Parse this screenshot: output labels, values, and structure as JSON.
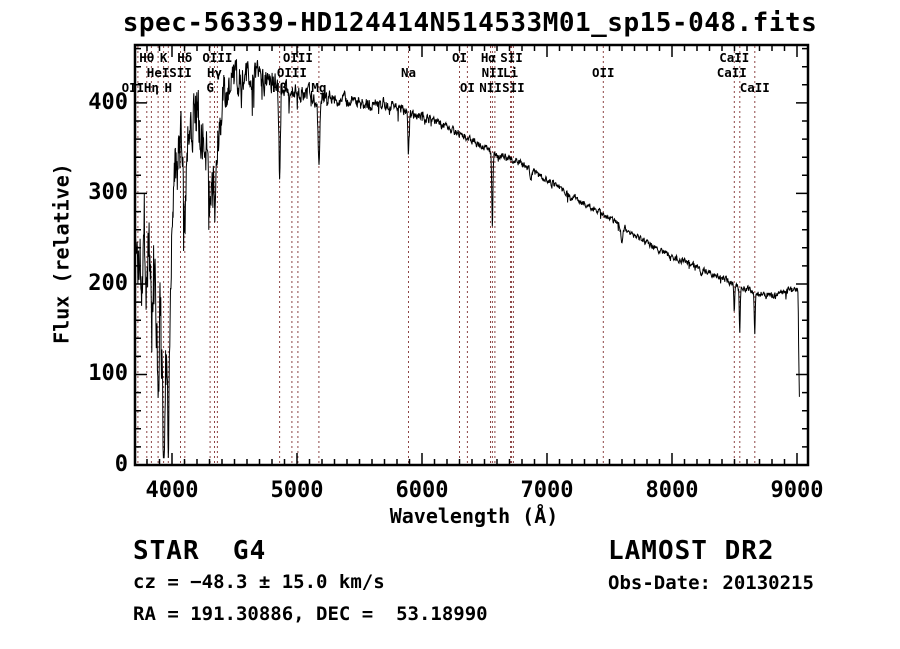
{
  "title": "spec-56339-HD124414N514533M01_sp15-048.fits",
  "annotations": {
    "class_label": "STAR  G4",
    "survey": "LAMOST DR2",
    "cz": "cz = −48.3 ± 15.0 km/s",
    "obs_date": "Obs-Date: 20130215",
    "radec": "RA = 191.30886, DEC =  53.18990"
  },
  "chart_data": {
    "type": "line",
    "title": "spec-56339-HD124414N514533M01_sp15-048.fits",
    "xlabel": "Wavelength (Å)",
    "ylabel": "Flux (relative)",
    "xlim": [
      3704,
      9088
    ],
    "ylim": [
      0,
      464
    ],
    "x_major_ticks": [
      4000,
      5000,
      6000,
      7000,
      8000,
      9000
    ],
    "x_minor_step": 100,
    "y_major_ticks": [
      0,
      100,
      200,
      300,
      400
    ],
    "y_minor_step": 20,
    "grid": false,
    "legend": "none",
    "spectrum_color": "#000000",
    "line_mark_color": "#8d4545",
    "spectral_lines": [
      {
        "label": "OII",
        "wavelength": 3727,
        "row": 3,
        "dx": -5
      },
      {
        "label": "Hθ",
        "wavelength": 3798,
        "row": 1
      },
      {
        "label": "Hη",
        "wavelength": 3835,
        "row": 3
      },
      {
        "label": "HeI",
        "wavelength": 3889,
        "row": 2
      },
      {
        "label": "K",
        "wavelength": 3933,
        "row": 1
      },
      {
        "label": "H",
        "wavelength": 3970,
        "row": 3
      },
      {
        "label": "SII",
        "wavelength": 4068,
        "row": 2
      },
      {
        "label": "Hδ",
        "wavelength": 4102,
        "row": 1
      },
      {
        "label": "G",
        "wavelength": 4305,
        "row": 3
      },
      {
        "label": "Hγ",
        "wavelength": 4340,
        "row": 2
      },
      {
        "label": "OIII",
        "wavelength": 4363,
        "row": 1
      },
      {
        "label": "Hβ",
        "wavelength": 4861,
        "row": 3
      },
      {
        "label": "OIII",
        "wavelength": 4959,
        "row": 2
      },
      {
        "label": "OIII",
        "wavelength": 5007,
        "row": 1
      },
      {
        "label": "Mg",
        "wavelength": 5175,
        "row": 3
      },
      {
        "label": "Na",
        "wavelength": 5892,
        "row": 2
      },
      {
        "label": "OI",
        "wavelength": 6300,
        "row": 1
      },
      {
        "label": "OI",
        "wavelength": 6363,
        "row": 3
      },
      {
        "label": "NII",
        "wavelength": 6548,
        "row": 3
      },
      {
        "label": "Hα",
        "wavelength": 6563,
        "row": 1,
        "dx": -4
      },
      {
        "label": "NII",
        "wavelength": 6583,
        "row": 2,
        "dx": -2
      },
      {
        "label": "Li",
        "wavelength": 6708,
        "row": 2
      },
      {
        "label": "SII",
        "wavelength": 6716,
        "row": 1
      },
      {
        "label": "SII",
        "wavelength": 6731,
        "row": 3
      },
      {
        "label": "OII",
        "wavelength": 7450,
        "row": 2
      },
      {
        "label": "CaII",
        "wavelength": 8498,
        "row": 1
      },
      {
        "label": "CaII",
        "wavelength": 8542,
        "row": 2,
        "dx": -8
      },
      {
        "label": "CaII",
        "wavelength": 8662,
        "row": 3
      }
    ],
    "spectrum": {
      "lambda_start": 3706,
      "lambda_end": 9020,
      "step": 3,
      "seed": 1337,
      "continuum": [
        [
          3706,
          235
        ],
        [
          3730,
          225
        ],
        [
          3760,
          245
        ],
        [
          3790,
          265
        ],
        [
          3820,
          240
        ],
        [
          3860,
          205
        ],
        [
          3900,
          165
        ],
        [
          3935,
          125
        ],
        [
          3965,
          115
        ],
        [
          3990,
          240
        ],
        [
          4010,
          300
        ],
        [
          4040,
          330
        ],
        [
          4070,
          345
        ],
        [
          4100,
          330
        ],
        [
          4130,
          370
        ],
        [
          4170,
          390
        ],
        [
          4200,
          398
        ],
        [
          4230,
          380
        ],
        [
          4270,
          355
        ],
        [
          4305,
          330
        ],
        [
          4340,
          325
        ],
        [
          4380,
          390
        ],
        [
          4420,
          408
        ],
        [
          4470,
          420
        ],
        [
          4520,
          426
        ],
        [
          4570,
          430
        ],
        [
          4620,
          428
        ],
        [
          4670,
          431
        ],
        [
          4720,
          429
        ],
        [
          4770,
          424
        ],
        [
          4820,
          420
        ],
        [
          4861,
          405
        ],
        [
          4900,
          413
        ],
        [
          4950,
          410
        ],
        [
          5000,
          411
        ],
        [
          5050,
          413
        ],
        [
          5100,
          412
        ],
        [
          5150,
          405
        ],
        [
          5200,
          407
        ],
        [
          5300,
          405
        ],
        [
          5400,
          403
        ],
        [
          5500,
          401
        ],
        [
          5600,
          399
        ],
        [
          5700,
          399
        ],
        [
          5800,
          397
        ],
        [
          5900,
          390
        ],
        [
          6000,
          386
        ],
        [
          6100,
          379
        ],
        [
          6200,
          373
        ],
        [
          6300,
          367
        ],
        [
          6400,
          359
        ],
        [
          6500,
          352
        ],
        [
          6600,
          343
        ],
        [
          6700,
          339
        ],
        [
          6800,
          333
        ],
        [
          6900,
          323
        ],
        [
          7000,
          315
        ],
        [
          7100,
          307
        ],
        [
          7200,
          298
        ],
        [
          7300,
          290
        ],
        [
          7400,
          282
        ],
        [
          7500,
          273
        ],
        [
          7600,
          264
        ],
        [
          7700,
          254
        ],
        [
          7800,
          245
        ],
        [
          7900,
          237
        ],
        [
          8000,
          231
        ],
        [
          8100,
          225
        ],
        [
          8200,
          220
        ],
        [
          8300,
          213
        ],
        [
          8400,
          206
        ],
        [
          8500,
          200
        ],
        [
          8600,
          194
        ],
        [
          8700,
          189
        ],
        [
          8800,
          187
        ],
        [
          8900,
          191
        ],
        [
          8970,
          195
        ],
        [
          9000,
          193
        ],
        [
          9008,
          190
        ],
        [
          9014,
          120
        ],
        [
          9020,
          62
        ]
      ],
      "noise_sigma": [
        [
          3706,
          50
        ],
        [
          3800,
          52
        ],
        [
          3900,
          50
        ],
        [
          3980,
          42
        ],
        [
          4050,
          34
        ],
        [
          4150,
          30
        ],
        [
          4250,
          27
        ],
        [
          4350,
          25
        ],
        [
          4450,
          20
        ],
        [
          4550,
          16
        ],
        [
          4700,
          13
        ],
        [
          4850,
          11
        ],
        [
          5000,
          9
        ],
        [
          5200,
          7.5
        ],
        [
          5500,
          6
        ],
        [
          5800,
          5
        ],
        [
          6100,
          4.5
        ],
        [
          6400,
          4
        ],
        [
          6700,
          3.8
        ],
        [
          7000,
          3.5
        ],
        [
          7400,
          3.2
        ],
        [
          7800,
          3
        ],
        [
          8200,
          3
        ],
        [
          8600,
          3.2
        ],
        [
          9000,
          3
        ]
      ],
      "absorption": [
        {
          "center": 3798,
          "sigma": 6,
          "depth": 55
        },
        {
          "center": 3835,
          "sigma": 6,
          "depth": 65
        },
        {
          "center": 3889,
          "sigma": 6,
          "depth": 70
        },
        {
          "center": 3933,
          "sigma": 7,
          "depth": 95
        },
        {
          "center": 3970,
          "sigma": 7,
          "depth": 90
        },
        {
          "center": 4102,
          "sigma": 7,
          "depth": 55
        },
        {
          "center": 4227,
          "sigma": 5,
          "depth": 30
        },
        {
          "center": 4305,
          "sigma": 9,
          "depth": 55
        },
        {
          "center": 4340,
          "sigma": 6,
          "depth": 60
        },
        {
          "center": 4383,
          "sigma": 5,
          "depth": 35
        },
        {
          "center": 4861,
          "sigma": 5,
          "depth": 95
        },
        {
          "center": 5175,
          "sigma": 7,
          "depth": 75
        },
        {
          "center": 5892,
          "sigma": 5,
          "depth": 45
        },
        {
          "center": 6563,
          "sigma": 4.5,
          "depth": 80
        },
        {
          "center": 6870,
          "sigma": 7,
          "depth": 12
        },
        {
          "center": 7190,
          "sigma": 8,
          "depth": 8
        },
        {
          "center": 7600,
          "sigma": 9,
          "depth": 15
        },
        {
          "center": 8230,
          "sigma": 9,
          "depth": 8
        },
        {
          "center": 8498,
          "sigma": 4,
          "depth": 32
        },
        {
          "center": 8542,
          "sigma": 4,
          "depth": 48
        },
        {
          "center": 8662,
          "sigma": 4,
          "depth": 42
        }
      ]
    }
  }
}
